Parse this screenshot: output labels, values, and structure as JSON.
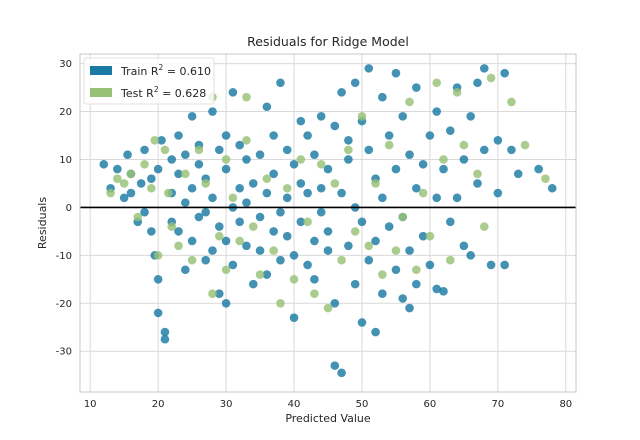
{
  "chart_data": {
    "type": "scatter",
    "title": "Residuals for Ridge Model",
    "xlabel": "Predicted Value",
    "ylabel": "Residuals",
    "xlim": [
      8.5,
      81.5
    ],
    "ylim": [
      -38.5,
      32
    ],
    "xticks": [
      10,
      20,
      30,
      40,
      50,
      60,
      70,
      80
    ],
    "yticks": [
      -30,
      -20,
      -10,
      0,
      10,
      20,
      30
    ],
    "grid": true,
    "legend_placement": "top-left",
    "reference_line_y": 0,
    "colors": {
      "train": "#1a7aa3",
      "test": "#97c276",
      "zero_line": "#000000",
      "grid": "#d9d9d9",
      "frame": "#c8c8c8"
    },
    "series": [
      {
        "name": "Train",
        "legend_label": "Train R",
        "legend_sup": "2",
        "legend_value": " = 0.610",
        "points": [
          [
            12,
            9
          ],
          [
            13,
            4
          ],
          [
            14,
            8
          ],
          [
            15,
            2
          ],
          [
            15.5,
            11
          ],
          [
            16,
            7
          ],
          [
            16,
            3
          ],
          [
            17,
            -3
          ],
          [
            17.5,
            5
          ],
          [
            18,
            12
          ],
          [
            18,
            -1
          ],
          [
            19,
            6
          ],
          [
            19,
            -5
          ],
          [
            19.5,
            -10
          ],
          [
            20,
            8
          ],
          [
            20,
            -15
          ],
          [
            20.5,
            14
          ],
          [
            20,
            -22
          ],
          [
            21,
            -26
          ],
          [
            21,
            -27.5
          ],
          [
            22,
            10
          ],
          [
            22,
            -3
          ],
          [
            22,
            3
          ],
          [
            23,
            15
          ],
          [
            23,
            -5
          ],
          [
            23,
            7
          ],
          [
            24,
            -13
          ],
          [
            24,
            1
          ],
          [
            24,
            11
          ],
          [
            25,
            4
          ],
          [
            25,
            -7
          ],
          [
            25,
            19
          ],
          [
            26,
            9
          ],
          [
            26,
            -2
          ],
          [
            26,
            13
          ],
          [
            27,
            6
          ],
          [
            27,
            -11
          ],
          [
            27,
            -1
          ],
          [
            28,
            20
          ],
          [
            28,
            2
          ],
          [
            28,
            -9
          ],
          [
            29,
            12
          ],
          [
            29,
            -4
          ],
          [
            29,
            -18
          ],
          [
            30,
            8
          ],
          [
            30,
            -20
          ],
          [
            30,
            15
          ],
          [
            30,
            -7
          ],
          [
            31,
            24
          ],
          [
            31,
            0
          ],
          [
            31,
            -12
          ],
          [
            32,
            13
          ],
          [
            32,
            4
          ],
          [
            32,
            -3
          ],
          [
            33,
            10
          ],
          [
            33,
            -8
          ],
          [
            33,
            1
          ],
          [
            34,
            5
          ],
          [
            34,
            -16
          ],
          [
            35,
            11
          ],
          [
            35,
            -2
          ],
          [
            35,
            -9
          ],
          [
            36,
            21
          ],
          [
            36,
            3
          ],
          [
            36,
            -14
          ],
          [
            37,
            15
          ],
          [
            37,
            -5
          ],
          [
            37,
            7
          ],
          [
            38,
            -1
          ],
          [
            38,
            -11
          ],
          [
            38,
            26
          ],
          [
            39,
            12
          ],
          [
            39,
            -6
          ],
          [
            39,
            2
          ],
          [
            40,
            -23
          ],
          [
            40,
            -10
          ],
          [
            40,
            9
          ],
          [
            41,
            18
          ],
          [
            41,
            -3
          ],
          [
            41,
            5
          ],
          [
            42,
            3
          ],
          [
            42,
            -12
          ],
          [
            42,
            15
          ],
          [
            43,
            -7
          ],
          [
            43,
            11
          ],
          [
            43,
            -15
          ],
          [
            44,
            4
          ],
          [
            44,
            -1
          ],
          [
            44,
            19
          ],
          [
            45,
            -9
          ],
          [
            45,
            8
          ],
          [
            45,
            -5
          ],
          [
            46,
            17
          ],
          [
            46,
            -33
          ],
          [
            46,
            -20
          ],
          [
            47,
            -34.5
          ],
          [
            47,
            24
          ],
          [
            47,
            3
          ],
          [
            48,
            10
          ],
          [
            48,
            -8
          ],
          [
            48,
            14
          ],
          [
            49,
            26
          ],
          [
            49,
            -16
          ],
          [
            49,
            0
          ],
          [
            50,
            -3
          ],
          [
            50,
            -24
          ],
          [
            50,
            18
          ],
          [
            51,
            12
          ],
          [
            51,
            -11
          ],
          [
            51,
            29
          ],
          [
            52,
            6
          ],
          [
            52,
            -26
          ],
          [
            52,
            -7
          ],
          [
            53,
            23
          ],
          [
            53,
            -18
          ],
          [
            53,
            2
          ],
          [
            54,
            -4
          ],
          [
            54,
            15
          ],
          [
            55,
            28
          ],
          [
            55,
            -13
          ],
          [
            55,
            8
          ],
          [
            56,
            -2
          ],
          [
            56,
            -19
          ],
          [
            56,
            19
          ],
          [
            57,
            -9
          ],
          [
            57,
            11
          ],
          [
            57,
            -21
          ],
          [
            58,
            4
          ],
          [
            58,
            -16
          ],
          [
            58,
            25
          ],
          [
            59,
            -6
          ],
          [
            59,
            9
          ],
          [
            60,
            -12
          ],
          [
            60,
            15
          ],
          [
            61,
            -17
          ],
          [
            61,
            2
          ],
          [
            61,
            20
          ],
          [
            62,
            -17.5
          ],
          [
            62,
            8
          ],
          [
            63,
            -3
          ],
          [
            63,
            16
          ],
          [
            64,
            25
          ],
          [
            64,
            2
          ],
          [
            65,
            -8
          ],
          [
            65,
            10
          ],
          [
            66,
            19
          ],
          [
            66,
            -10
          ],
          [
            67,
            5
          ],
          [
            67,
            26
          ],
          [
            68,
            12
          ],
          [
            68,
            29
          ],
          [
            69,
            -12
          ],
          [
            70,
            3
          ],
          [
            70,
            14
          ],
          [
            71,
            -12
          ],
          [
            71,
            28
          ],
          [
            72,
            12
          ],
          [
            73,
            7
          ],
          [
            76,
            8
          ],
          [
            78,
            4
          ]
        ]
      },
      {
        "name": "Test",
        "legend_label": "Test R",
        "legend_sup": "2",
        "legend_value": " = 0.628",
        "points": [
          [
            13,
            3
          ],
          [
            14,
            6
          ],
          [
            15,
            5
          ],
          [
            16,
            7
          ],
          [
            17,
            -2
          ],
          [
            18,
            9
          ],
          [
            19,
            4
          ],
          [
            19.5,
            14
          ],
          [
            20,
            -10
          ],
          [
            21,
            12
          ],
          [
            21.5,
            3
          ],
          [
            22,
            -4
          ],
          [
            23,
            -8
          ],
          [
            24,
            7
          ],
          [
            25,
            -11
          ],
          [
            26,
            12
          ],
          [
            27,
            5
          ],
          [
            28,
            23
          ],
          [
            28,
            -18
          ],
          [
            29,
            -6
          ],
          [
            30,
            10
          ],
          [
            30,
            -13
          ],
          [
            31,
            2
          ],
          [
            32,
            -7
          ],
          [
            33,
            23
          ],
          [
            33,
            14
          ],
          [
            34,
            -4
          ],
          [
            35,
            -14
          ],
          [
            36,
            6
          ],
          [
            37,
            -9
          ],
          [
            38,
            -20
          ],
          [
            39,
            4
          ],
          [
            40,
            -15
          ],
          [
            41,
            10
          ],
          [
            42,
            -3
          ],
          [
            43,
            -18
          ],
          [
            44,
            9
          ],
          [
            45,
            -21
          ],
          [
            46,
            5
          ],
          [
            47,
            -11
          ],
          [
            48,
            12
          ],
          [
            49,
            -5
          ],
          [
            50,
            19
          ],
          [
            51,
            -8
          ],
          [
            52,
            5
          ],
          [
            53,
            -14
          ],
          [
            54,
            13
          ],
          [
            55,
            -9
          ],
          [
            56,
            -2
          ],
          [
            57,
            22
          ],
          [
            58,
            -13
          ],
          [
            59,
            3
          ],
          [
            60,
            -6
          ],
          [
            61,
            26
          ],
          [
            62,
            10
          ],
          [
            63,
            -11
          ],
          [
            64,
            24
          ],
          [
            65,
            13
          ],
          [
            67,
            7
          ],
          [
            68,
            -4
          ],
          [
            69,
            27
          ],
          [
            72,
            22
          ],
          [
            74,
            13
          ],
          [
            77,
            6
          ]
        ]
      }
    ]
  }
}
